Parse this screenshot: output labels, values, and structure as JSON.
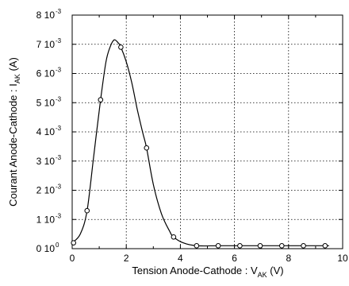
{
  "chart_data": {
    "type": "line",
    "title": "",
    "xlabel": {
      "text": "Tension Anode-Cathode : V",
      "subscript": "AK",
      "suffix": " (V)"
    },
    "ylabel": {
      "text": "Courant Anode-Cathode : I",
      "subscript": "AK",
      "suffix": " (A)"
    },
    "xlim": [
      0,
      10
    ],
    "ylim": [
      0,
      0.008
    ],
    "grid": true,
    "x_ticks": [
      {
        "value": 0,
        "label": "0"
      },
      {
        "value": 2,
        "label": "2"
      },
      {
        "value": 4,
        "label": "4"
      },
      {
        "value": 6,
        "label": "6"
      },
      {
        "value": 8,
        "label": "8"
      },
      {
        "value": 10,
        "label": "10"
      }
    ],
    "y_ticks": [
      {
        "value": 0,
        "mantissa": "0 10",
        "exponent": "0"
      },
      {
        "value": 0.001,
        "mantissa": "1 10",
        "exponent": "-3"
      },
      {
        "value": 0.002,
        "mantissa": "2 10",
        "exponent": "-3"
      },
      {
        "value": 0.003,
        "mantissa": "3 10",
        "exponent": "-3"
      },
      {
        "value": 0.004,
        "mantissa": "4 10",
        "exponent": "-3"
      },
      {
        "value": 0.005,
        "mantissa": "5 10",
        "exponent": "-3"
      },
      {
        "value": 0.006,
        "mantissa": "6 10",
        "exponent": "-3"
      },
      {
        "value": 0.007,
        "mantissa": "7 10",
        "exponent": "-3"
      },
      {
        "value": 0.008,
        "mantissa": "8 10",
        "exponent": "-3"
      }
    ],
    "series": [
      {
        "style": "markers",
        "marker": "open-circle",
        "x": [
          0.05,
          0.55,
          1.05,
          1.8,
          2.75,
          3.75,
          4.6,
          5.4,
          6.2,
          6.95,
          7.75,
          8.55,
          9.35
        ],
        "y": [
          0.0002,
          0.0013,
          0.0051,
          0.0069,
          0.00345,
          0.0004,
          0.0001,
          0.0001,
          0.0001,
          0.0001,
          0.0001,
          0.0001,
          0.0001
        ]
      },
      {
        "style": "line",
        "x": [
          0,
          0.3,
          0.55,
          0.8,
          1.05,
          1.25,
          1.4,
          1.55,
          1.7,
          1.8,
          2.0,
          2.2,
          2.4,
          2.6,
          2.75,
          3.0,
          3.3,
          3.6,
          3.75,
          4.1,
          4.6,
          5.5,
          7,
          9.5
        ],
        "y": [
          0.0002,
          0.0005,
          0.0013,
          0.0032,
          0.0051,
          0.0064,
          0.0069,
          0.00715,
          0.00705,
          0.0069,
          0.0064,
          0.0057,
          0.0048,
          0.004,
          0.00345,
          0.0022,
          0.0012,
          0.0006,
          0.0004,
          0.0002,
          0.0001,
          0.0001,
          0.0001,
          0.0001
        ]
      }
    ]
  }
}
